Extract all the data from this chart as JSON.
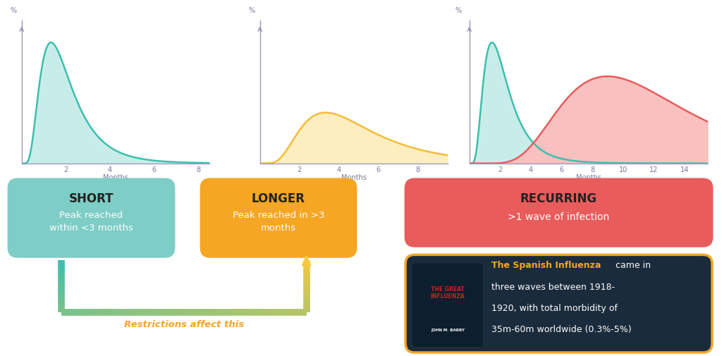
{
  "bg_color": "#ffffff",
  "chart1": {
    "color_line": "#3dbfad",
    "color_fill": "#c8ede9",
    "mu": 1.8,
    "sigma": 0.55,
    "x_ticks": [
      2,
      4,
      6,
      8
    ],
    "x_max": 8.5,
    "peak_scale": 1.0
  },
  "chart2": {
    "color_line": "#f5bc3a",
    "color_fill": "#fdeec0",
    "mu": 4.5,
    "sigma": 0.55,
    "x_ticks": [
      2,
      4,
      6,
      8
    ],
    "x_max": 9.5,
    "peak_scale": 0.42
  },
  "chart3_wave1": {
    "color_line": "#3dbfad",
    "color_fill": "#c8ede9",
    "mu": 2.0,
    "sigma": 0.55,
    "peak_scale": 1.0
  },
  "chart3_wave2": {
    "color_line": "#e85c5c",
    "color_fill": "#f9c0c0",
    "mu": 11.0,
    "sigma": 0.45,
    "peak_scale": 0.72,
    "x_ticks": [
      2,
      4,
      6,
      8,
      10,
      12,
      14
    ],
    "x_max": 15.5
  },
  "box_short": {
    "label": "SHORT",
    "sublabel": "Peak reached\nwithin <3 months",
    "bg_color": "#7ecdc6",
    "text_color_title": "#222222",
    "text_color_sub": "#ffffff"
  },
  "box_longer": {
    "label": "LONGER",
    "sublabel": "Peak reached in >3\nmonths",
    "bg_color": "#f5a623",
    "text_color_title": "#222222",
    "text_color_sub": "#ffffff"
  },
  "box_recurring": {
    "label": "RECURRING",
    "sublabel": ">1 wave of infection",
    "bg_color": "#e85c5c",
    "text_color_title": "#222222",
    "text_color_sub": "#ffffff"
  },
  "box_book": {
    "bg_color": "#1a2b3c",
    "border_color": "#f5a623",
    "text_highlight": "The Spanish Influenza",
    "text_body": " came in\nthree waves between 1918-\n1920, with total morbidity of\n35m-60m worldwide (0.3%-5%)",
    "text_color_highlight": "#f5a623",
    "text_color_body": "#ffffff"
  },
  "arrow_teal": "#3dbfad",
  "arrow_yellow": "#f5c842",
  "arrow_label": "Restrictions affect this",
  "arrow_label_color": "#f5a623",
  "months_label": "Months",
  "y_label": "%",
  "axis_color": "#9999bb",
  "tick_color": "#777799",
  "tick_fontsize": 7
}
